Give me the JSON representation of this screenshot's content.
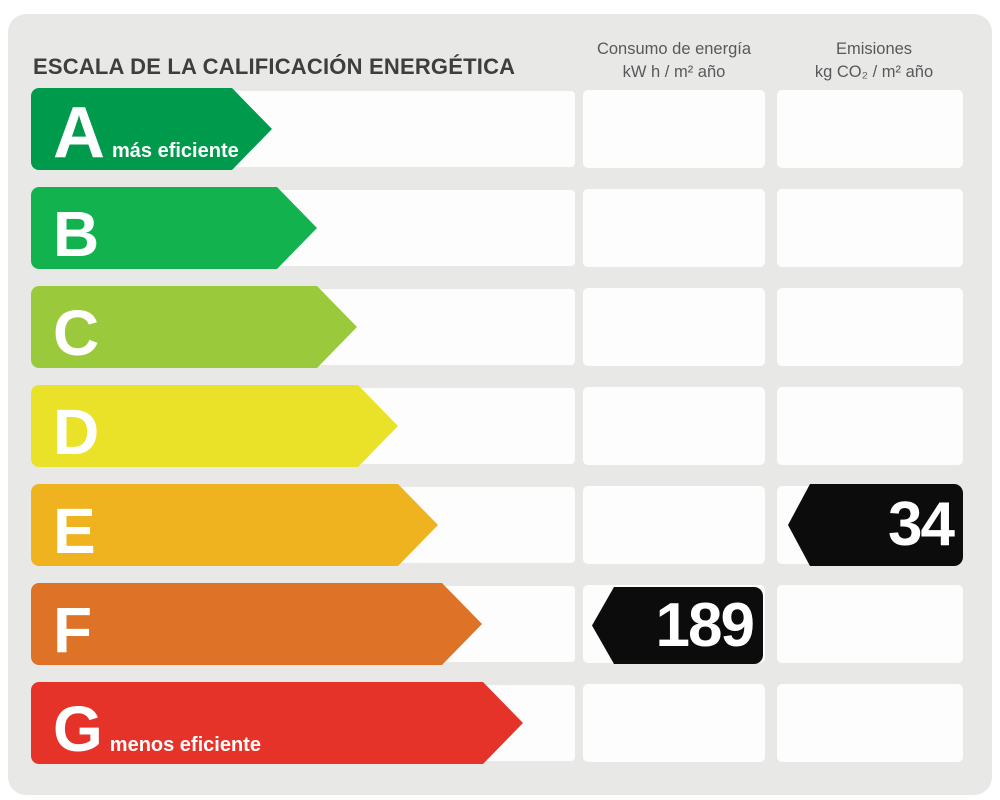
{
  "header": {
    "title": "ESCALA DE LA CALIFICACIÓN ENERGÉTICA",
    "consumption_col": {
      "line1": "Consumo de energía",
      "line2": "kW h / m² año"
    },
    "emissions_col": {
      "line1": "Emisiones",
      "line2": "kg CO₂ / m² año"
    }
  },
  "scale": {
    "rows": [
      {
        "letter": "A",
        "note": "más eficiente",
        "color": "#009a4c",
        "arrow_width": 241
      },
      {
        "letter": "B",
        "note": "",
        "color": "#12b24f",
        "arrow_width": 286
      },
      {
        "letter": "C",
        "note": "",
        "color": "#9aca3b",
        "arrow_width": 326
      },
      {
        "letter": "D",
        "note": "",
        "color": "#eae228",
        "arrow_width": 367
      },
      {
        "letter": "E",
        "note": "",
        "color": "#eeb31f",
        "arrow_width": 407
      },
      {
        "letter": "F",
        "note": "",
        "color": "#de7327",
        "arrow_width": 451
      },
      {
        "letter": "G",
        "note": "menos eficiente",
        "color": "#e6332a",
        "arrow_width": 492
      }
    ]
  },
  "indicators": {
    "consumption": {
      "value": "189",
      "rating": "F",
      "color": "#0c0c0c"
    },
    "emissions": {
      "value": "34",
      "rating": "E",
      "color": "#0c0c0c"
    }
  },
  "colors": {
    "panel_bg": "#e8e8e6",
    "cell_bg": "#fdfdfd",
    "marker_bg": "#0c0c0c",
    "title_text": "#3e3e3e",
    "colhead_text": "#58595b"
  },
  "chart_data": {
    "type": "bar",
    "title": "ESCALA DE LA CALIFICACIÓN ENERGÉTICA",
    "categories": [
      "A",
      "B",
      "C",
      "D",
      "E",
      "F",
      "G"
    ],
    "category_notes": {
      "A": "más eficiente",
      "G": "menos eficiente"
    },
    "bar_colors": [
      "#009a4c",
      "#12b24f",
      "#9aca3b",
      "#eae228",
      "#eeb31f",
      "#de7327",
      "#e6332a"
    ],
    "series": [
      {
        "name": "Consumo de energía kW h / m² año",
        "values": [
          null,
          null,
          null,
          null,
          null,
          189,
          null
        ]
      },
      {
        "name": "Emisiones kg CO₂ / m² año",
        "values": [
          null,
          null,
          null,
          null,
          34,
          null,
          null
        ]
      }
    ],
    "annotations": [
      {
        "label": "189",
        "category": "F",
        "column": "Consumo de energía"
      },
      {
        "label": "34",
        "category": "E",
        "column": "Emisiones"
      }
    ],
    "layout": {
      "orientation": "horizontal",
      "bar_length_increases_down_scale": true,
      "grid": false,
      "legend_position": "top"
    }
  }
}
